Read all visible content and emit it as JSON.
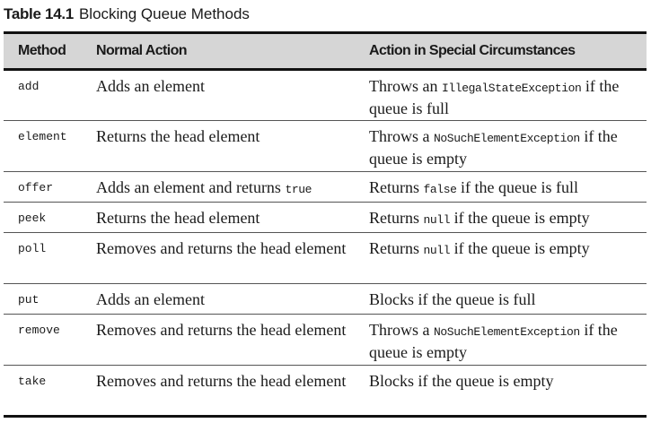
{
  "caption": {
    "number": "Table 14.1",
    "title": "Blocking Queue Methods"
  },
  "table": {
    "headers": [
      "Method",
      "Normal Action",
      "Action in Special Circumstances"
    ],
    "rows": [
      {
        "method": "add",
        "normal": [
          {
            "t": "Adds an element"
          }
        ],
        "special": [
          {
            "t": "Throws an "
          },
          {
            "c": "IllegalStateException"
          },
          {
            "t": " if the queue is full"
          }
        ]
      },
      {
        "method": "element",
        "normal": [
          {
            "t": "Returns the head element"
          }
        ],
        "special": [
          {
            "t": "Throws a "
          },
          {
            "c": "NoSuchElementException"
          },
          {
            "t": " if the queue is empty"
          }
        ]
      },
      {
        "method": "offer",
        "normal": [
          {
            "t": "Adds an element and returns "
          },
          {
            "c": "true"
          }
        ],
        "special": [
          {
            "t": "Returns "
          },
          {
            "c": "false"
          },
          {
            "t": " if the queue is full"
          }
        ]
      },
      {
        "method": "peek",
        "normal": [
          {
            "t": "Returns the head element"
          }
        ],
        "special": [
          {
            "t": "Returns "
          },
          {
            "c": "null"
          },
          {
            "t": " if the queue is empty"
          }
        ]
      },
      {
        "method": "poll",
        "normal": [
          {
            "t": "Removes and returns the head element"
          }
        ],
        "special": [
          {
            "t": "Returns "
          },
          {
            "c": "null"
          },
          {
            "t": " if the queue is empty"
          }
        ]
      },
      {
        "method": "put",
        "normal": [
          {
            "t": "Adds an element"
          }
        ],
        "special": [
          {
            "t": "Blocks if the queue is full"
          }
        ]
      },
      {
        "method": "remove",
        "normal": [
          {
            "t": "Removes and returns the head element"
          }
        ],
        "special": [
          {
            "t": "Throws a "
          },
          {
            "c": "NoSuchElementException"
          },
          {
            "t": " if the queue is empty"
          }
        ]
      },
      {
        "method": "take",
        "normal": [
          {
            "t": "Removes and returns the head element"
          }
        ],
        "special": [
          {
            "t": "Blocks if the queue is empty"
          }
        ]
      }
    ]
  }
}
